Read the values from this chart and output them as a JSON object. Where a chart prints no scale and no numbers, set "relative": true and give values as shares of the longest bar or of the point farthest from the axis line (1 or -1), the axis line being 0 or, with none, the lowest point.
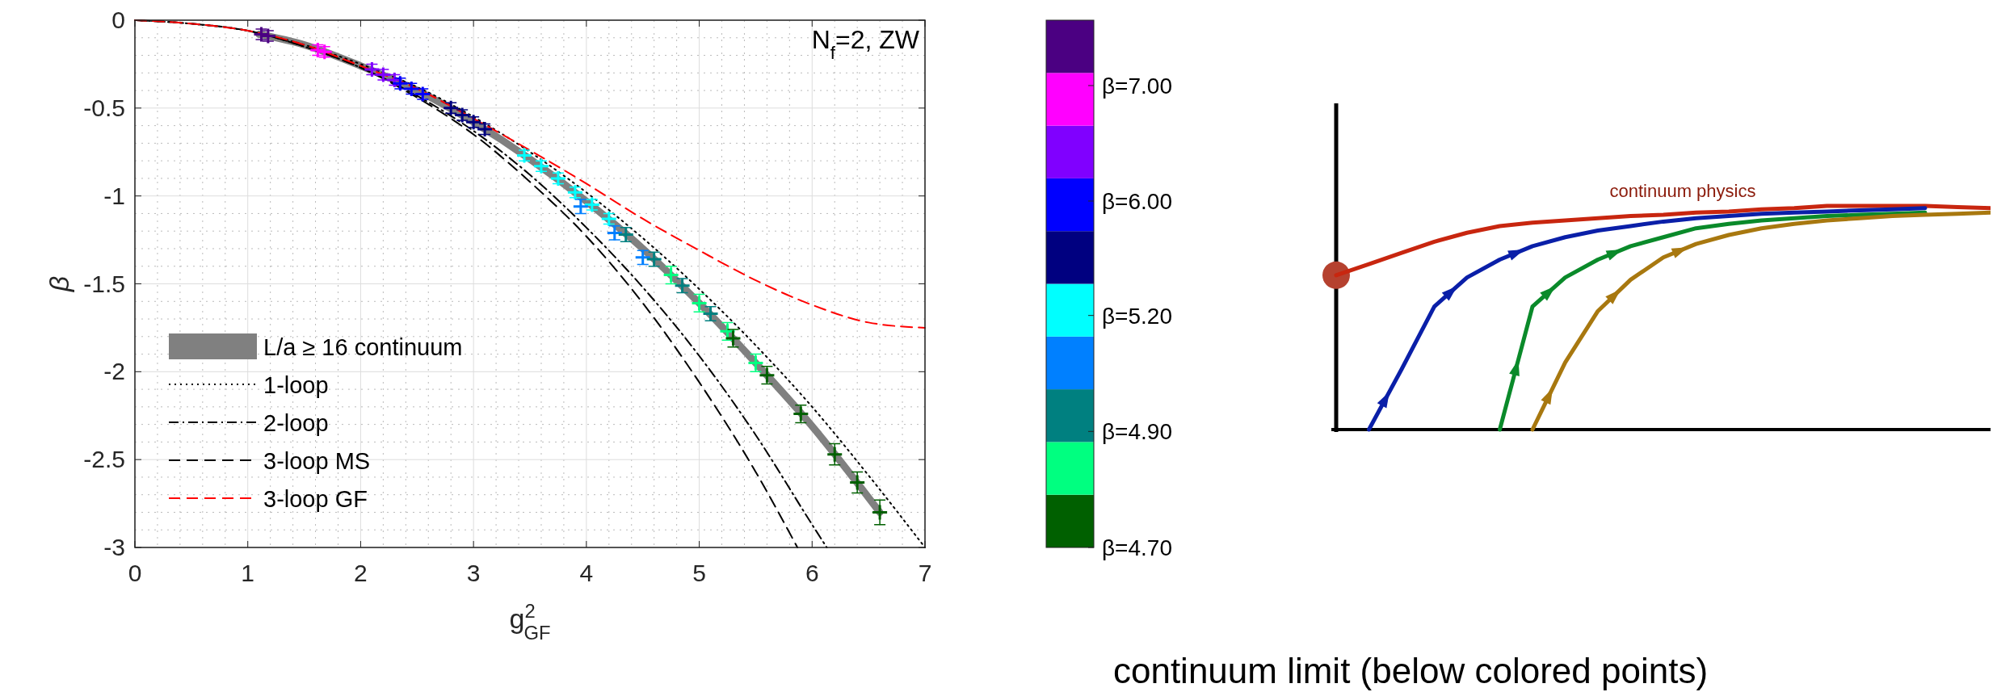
{
  "chart_data": [
    {
      "type": "scatter",
      "xlabel": "g$^{2}$$_{GF}$",
      "ylabel": "β",
      "xlim": [
        0,
        7
      ],
      "ylim": [
        -3,
        0
      ],
      "xticks": [
        0,
        1,
        2,
        3,
        4,
        5,
        6,
        7
      ],
      "yticks": [
        0,
        -0.5,
        -1,
        -1.5,
        -2,
        -2.5,
        -3
      ],
      "grid": true,
      "legend": "bottom left",
      "annotations": [
        "N$_{f}$=2, ZW",
        "β=7.00",
        "β=6.00",
        "β=5.20",
        "β=4.90",
        "β=4.70",
        "continuum limit (below colored points)"
      ],
      "series": [
        {
          "name": "L/a ≥ 16 continuum",
          "type": "line",
          "color": "#808080",
          "x": [
            1.1,
            1.5,
            2,
            2.5,
            3,
            3.5,
            4,
            4.5,
            5,
            5.5,
            6,
            6.6
          ],
          "values": [
            -0.08,
            -0.14,
            -0.26,
            -0.4,
            -0.58,
            -0.79,
            -1.03,
            -1.3,
            -1.61,
            -1.95,
            -2.31,
            -2.8
          ]
        },
        {
          "name": "1-loop",
          "type": "line",
          "color": "#000000",
          "line_style": "dotted",
          "x": [
            0,
            0.5,
            1,
            1.5,
            2,
            2.5,
            3,
            3.5,
            4,
            4.5,
            5,
            5.5,
            6,
            6.5,
            7
          ],
          "values": [
            0,
            -0.02,
            -0.06,
            -0.14,
            -0.25,
            -0.38,
            -0.55,
            -0.75,
            -0.98,
            -1.24,
            -1.53,
            -1.85,
            -2.2,
            -2.59,
            -3
          ]
        },
        {
          "name": "2-loop",
          "type": "line",
          "color": "#000000",
          "line_style": "dashdot",
          "x": [
            0,
            0.5,
            1,
            1.5,
            2,
            2.5,
            3,
            3.5,
            4,
            4.5,
            5,
            5.5,
            6,
            6.13
          ],
          "values": [
            0,
            -0.02,
            -0.06,
            -0.15,
            -0.27,
            -0.43,
            -0.63,
            -0.88,
            -1.18,
            -1.52,
            -1.91,
            -2.36,
            -2.87,
            -3
          ]
        },
        {
          "name": "3-loop MS",
          "type": "line",
          "color": "#000000",
          "line_style": "dashed",
          "x": [
            0,
            0.5,
            1,
            1.5,
            2,
            2.5,
            3,
            3.5,
            4,
            4.5,
            5,
            5.5,
            5.87
          ],
          "values": [
            0,
            -0.02,
            -0.06,
            -0.15,
            -0.27,
            -0.44,
            -0.65,
            -0.92,
            -1.23,
            -1.61,
            -2.06,
            -2.57,
            -3
          ]
        },
        {
          "name": "3-loop GF",
          "type": "line",
          "color": "#ff0000",
          "line_style": "dashed",
          "x": [
            0,
            0.5,
            1,
            1.5,
            2,
            2.5,
            3,
            3.5,
            4,
            4.5,
            5,
            5.5,
            6,
            6.5,
            7
          ],
          "values": [
            0,
            -0.02,
            -0.06,
            -0.14,
            -0.26,
            -0.39,
            -0.56,
            -0.74,
            -0.93,
            -1.13,
            -1.31,
            -1.48,
            -1.62,
            -1.72,
            -1.75
          ]
        },
        {
          "type": "scatter",
          "marker": "cross",
          "color": "#4b0082",
          "x": [
            1.12,
            1.18
          ],
          "values": [
            -0.08,
            -0.09
          ],
          "errors": [
            0.03,
            0.03
          ]
        },
        {
          "type": "scatter",
          "marker": "cross",
          "color": "#ff00ff",
          "x": [
            1.62,
            1.68
          ],
          "values": [
            -0.17,
            -0.18
          ],
          "errors": [
            0.03,
            0.03
          ]
        },
        {
          "type": "scatter",
          "marker": "cross",
          "color": "#8000ff",
          "x": [
            2.1,
            2.2,
            2.3
          ],
          "values": [
            -0.28,
            -0.31,
            -0.34
          ],
          "errors": [
            0.03,
            0.03,
            0.03
          ]
        },
        {
          "type": "scatter",
          "marker": "cross",
          "color": "#0000ff",
          "x": [
            2.35,
            2.45,
            2.55
          ],
          "values": [
            -0.36,
            -0.39,
            -0.42
          ],
          "errors": [
            0.03,
            0.03,
            0.03
          ]
        },
        {
          "type": "scatter",
          "marker": "cross",
          "color": "#000080",
          "x": [
            2.8,
            2.9,
            3.0,
            3.1
          ],
          "values": [
            -0.5,
            -0.54,
            -0.58,
            -0.62
          ],
          "errors": [
            0.03,
            0.03,
            0.03,
            0.03
          ]
        },
        {
          "type": "scatter",
          "marker": "cross",
          "color": "#00ffff",
          "x": [
            3.45,
            3.6,
            3.75,
            3.9,
            4.05,
            4.2
          ],
          "values": [
            -0.77,
            -0.83,
            -0.9,
            -0.98,
            -1.05,
            -1.13
          ],
          "errors": [
            0.03,
            0.03,
            0.03,
            0.03,
            0.03,
            0.03
          ]
        },
        {
          "type": "scatter",
          "marker": "cross",
          "color": "#0080ff",
          "x": [
            3.95,
            4.25,
            4.5
          ],
          "values": [
            -1.06,
            -1.21,
            -1.35
          ],
          "errors": [
            0.04,
            0.04,
            0.04
          ]
        },
        {
          "type": "scatter",
          "marker": "cross",
          "color": "#008080",
          "x": [
            4.35,
            4.6,
            4.85,
            5.1
          ],
          "values": [
            -1.22,
            -1.36,
            -1.51,
            -1.67
          ],
          "errors": [
            0.04,
            0.04,
            0.04,
            0.04
          ]
        },
        {
          "type": "scatter",
          "marker": "cross",
          "color": "#00ff80",
          "x": [
            4.75,
            5.0,
            5.25,
            5.5
          ],
          "values": [
            -1.45,
            -1.61,
            -1.77,
            -1.95
          ],
          "errors": [
            0.05,
            0.05,
            0.05,
            0.05
          ]
        },
        {
          "type": "scatter",
          "marker": "cross",
          "color": "#006000",
          "x": [
            5.3,
            5.6,
            5.9,
            6.2,
            6.4,
            6.6
          ],
          "values": [
            -1.81,
            -2.02,
            -2.24,
            -2.47,
            -2.63,
            -2.8
          ],
          "errors": [
            0.05,
            0.05,
            0.05,
            0.06,
            0.06,
            0.07
          ]
        }
      ]
    },
    {
      "type": "line",
      "relative": true,
      "categories": [
        null,
        null,
        null,
        null,
        null,
        null,
        null,
        null,
        null,
        null,
        null,
        null,
        null,
        null,
        null,
        null,
        null,
        null,
        null,
        null,
        null
      ],
      "annotations": [
        "continuum physics"
      ],
      "series": [
        {
          "color": "#c8260f",
          "values": [
            0.69,
            0.74,
            0.79,
            0.84,
            0.88,
            0.91,
            0.925,
            0.935,
            0.945,
            0.955,
            0.96,
            0.97,
            0.975,
            0.985,
            0.99,
            1.0,
            1.0,
            1.0,
            1.0,
            0.995,
            0.99
          ]
        },
        {
          "color": "#0a1fa8",
          "values": [
            null,
            0,
            0.27,
            0.55,
            0.68,
            0.76,
            0.82,
            0.86,
            0.89,
            0.91,
            0.93,
            0.945,
            0.955,
            0.965,
            0.97,
            0.975,
            0.98,
            0.985,
            0.99,
            null,
            null
          ]
        },
        {
          "color": "#0a8a2a",
          "values": [
            null,
            null,
            null,
            null,
            null,
            0,
            0.55,
            0.68,
            0.76,
            0.82,
            0.86,
            0.9,
            0.92,
            0.935,
            0.945,
            0.955,
            0.96,
            0.965,
            0.97,
            null,
            null
          ]
        },
        {
          "color": "#a8780f",
          "values": [
            null,
            null,
            null,
            null,
            null,
            null,
            0,
            0.3,
            0.53,
            0.67,
            0.77,
            0.83,
            0.87,
            0.9,
            0.92,
            0.935,
            0.945,
            0.955,
            0.96,
            0.965,
            0.97
          ]
        }
      ]
    }
  ]
}
